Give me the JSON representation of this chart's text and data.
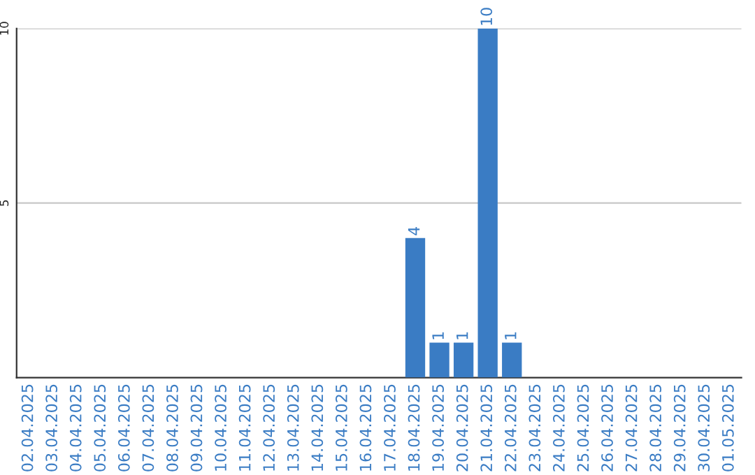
{
  "chart_data": {
    "type": "bar",
    "categories": [
      "02.04.2025",
      "03.04.2025",
      "04.04.2025",
      "05.04.2025",
      "06.04.2025",
      "07.04.2025",
      "08.04.2025",
      "09.04.2025",
      "10.04.2025",
      "11.04.2025",
      "12.04.2025",
      "13.04.2025",
      "14.04.2025",
      "15.04.2025",
      "16.04.2025",
      "17.04.2025",
      "18.04.2025",
      "19.04.2025",
      "20.04.2025",
      "21.04.2025",
      "22.04.2025",
      "23.04.2025",
      "24.04.2025",
      "25.04.2025",
      "26.04.2025",
      "27.04.2025",
      "28.04.2025",
      "29.04.2025",
      "30.04.2025",
      "01.05.2025"
    ],
    "values": [
      0,
      0,
      0,
      0,
      0,
      0,
      0,
      0,
      0,
      0,
      0,
      0,
      0,
      0,
      0,
      0,
      4,
      1,
      1,
      10,
      1,
      0,
      0,
      0,
      0,
      0,
      0,
      0,
      0,
      0
    ],
    "value_labels": [
      null,
      null,
      null,
      null,
      null,
      null,
      null,
      null,
      null,
      null,
      null,
      null,
      null,
      null,
      null,
      null,
      "4",
      "1",
      "1",
      "10",
      "1",
      null,
      null,
      null,
      null,
      null,
      null,
      null,
      null,
      null
    ],
    "color": "#3a7cc4",
    "ylim": [
      0,
      10
    ],
    "yticks": [
      5,
      10
    ],
    "grid": "y"
  }
}
